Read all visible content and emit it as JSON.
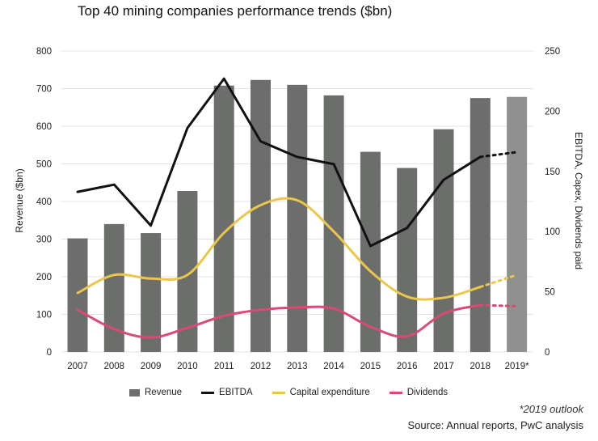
{
  "chart_data": {
    "type": "bar+line",
    "title": "Top 40 mining companies performance trends ($bn)",
    "categories": [
      "2007",
      "2008",
      "2009",
      "2010",
      "2011",
      "2012",
      "2013",
      "2014",
      "2015",
      "2016",
      "2017",
      "2018",
      "2019*"
    ],
    "y_left": {
      "label": "Revenue ($bn)",
      "lim": [
        0,
        800
      ],
      "ticks": [
        "0",
        "100",
        "200",
        "300",
        "400",
        "500",
        "600",
        "700",
        "800"
      ]
    },
    "y_right": {
      "label": "EBITDA, Capex, Dividends paid",
      "lim": [
        0,
        250
      ],
      "ticks": [
        "0",
        "50",
        "100",
        "150",
        "200",
        "250"
      ]
    },
    "series": [
      {
        "name": "Revenue",
        "type": "bar",
        "axis": "left",
        "color": "#6b6e6b",
        "outlook_color": "#8e918e",
        "values": [
          302,
          340,
          316,
          428,
          708,
          723,
          710,
          682,
          532,
          489,
          592,
          675,
          678
        ]
      },
      {
        "name": "EBITDA",
        "type": "line",
        "axis": "right",
        "color": "#111111",
        "values": [
          133,
          139,
          105,
          186,
          227,
          175,
          162,
          156,
          88,
          103,
          143,
          162,
          166
        ]
      },
      {
        "name": "Capital expenditure",
        "type": "line",
        "axis": "right",
        "color": "#ecc64a",
        "values": [
          49,
          64,
          61,
          64,
          99,
          122,
          126,
          100,
          67,
          46,
          45,
          54,
          64
        ]
      },
      {
        "name": "Dividends",
        "type": "line",
        "axis": "right",
        "color": "#d94a77",
        "values": [
          35,
          19,
          12,
          20,
          30,
          35,
          37,
          36,
          21,
          13,
          32,
          39,
          38
        ]
      }
    ],
    "forecast_from_index": 11,
    "legend_position": "bottom"
  },
  "note": "*2019 outlook",
  "source": "Source: Annual reports, PwC analysis"
}
